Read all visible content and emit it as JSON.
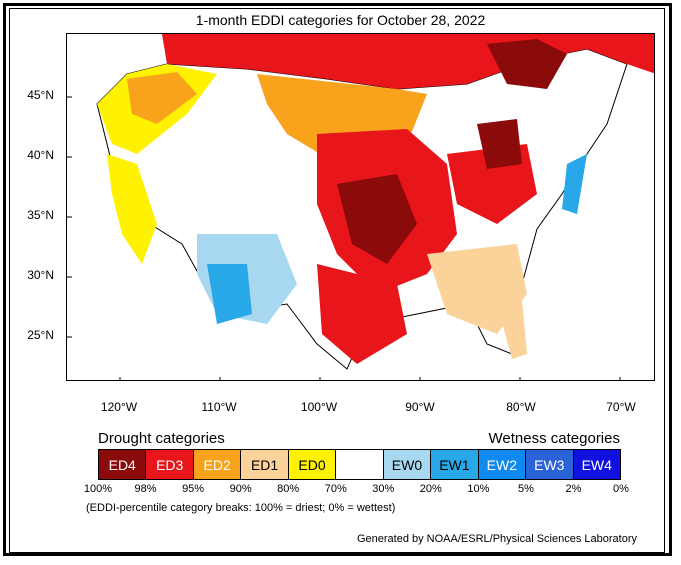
{
  "title": "1-month EDDI categories for October 28, 2022",
  "map": {
    "lat_labels": [
      "45°N",
      "40°N",
      "35°N",
      "30°N",
      "25°N"
    ],
    "lon_labels": [
      "120°W",
      "110°W",
      "100°W",
      "90°W",
      "80°W",
      "70°W"
    ]
  },
  "legend": {
    "drought_title": "Drought categories",
    "wetness_title": "Wetness categories",
    "categories": [
      {
        "label": "ED4",
        "color": "#8b0a0a",
        "text_color": "#ffffff"
      },
      {
        "label": "ED3",
        "color": "#e8151b",
        "text_color": "#ffffff"
      },
      {
        "label": "ED2",
        "color": "#f9a21c",
        "text_color": "#ffffff"
      },
      {
        "label": "ED1",
        "color": "#fbd39a",
        "text_color": "#000000"
      },
      {
        "label": "ED0",
        "color": "#fef200",
        "text_color": "#000000"
      },
      {
        "label": "",
        "color": "#ffffff",
        "text_color": "#000000"
      },
      {
        "label": "EW0",
        "color": "#a8d8f0",
        "text_color": "#000000"
      },
      {
        "label": "EW1",
        "color": "#28a8e8",
        "text_color": "#000000"
      },
      {
        "label": "EW2",
        "color": "#0f8bf0",
        "text_color": "#ffffff"
      },
      {
        "label": "EW3",
        "color": "#2a63d8",
        "text_color": "#ffffff"
      },
      {
        "label": "EW4",
        "color": "#1212e0",
        "text_color": "#ffffff"
      }
    ],
    "percentiles": [
      "100%",
      "98%",
      "95%",
      "90%",
      "80%",
      "70%",
      "30%",
      "20%",
      "10%",
      "5%",
      "2%",
      "0%"
    ]
  },
  "note": "(EDDI-percentile category breaks: 100% = driest; 0% = wettest)",
  "credit": "Generated by NOAA/ESRL/Physical Sciences Laboratory",
  "colors": {
    "ocean": "#ffffff",
    "border_line": "#000000"
  }
}
